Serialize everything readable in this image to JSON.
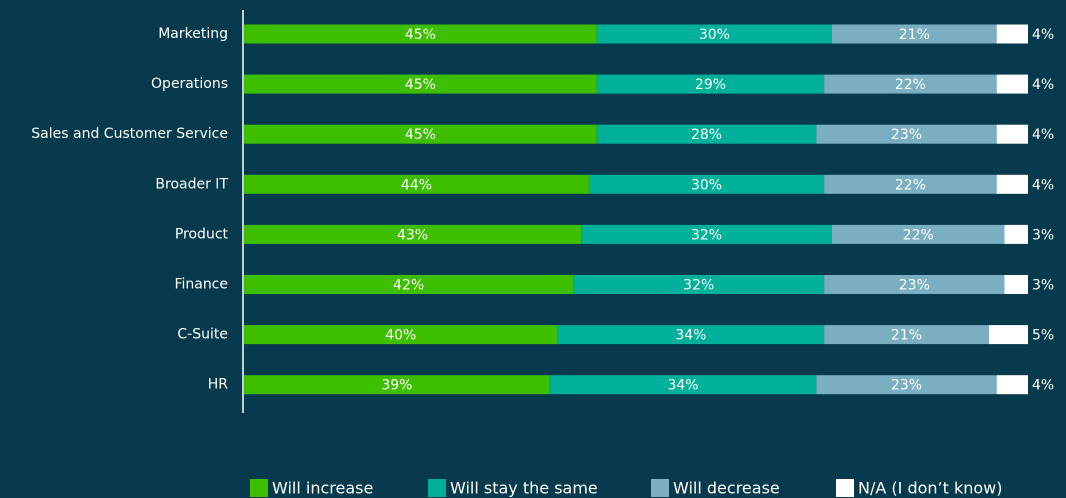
{
  "chart_data": {
    "type": "stacked-bar-horizontal",
    "categories": [
      "Marketing",
      "Operations",
      "Sales and Customer Service",
      "Broader IT",
      "Product",
      "Finance",
      "C-Suite",
      "HR"
    ],
    "xlim": [
      0,
      100
    ],
    "legend": "bottom",
    "series": [
      {
        "name": "Will increase",
        "color": "#3dbf00",
        "values": [
          45,
          45,
          45,
          44,
          43,
          42,
          40,
          39
        ],
        "value_labels": [
          "45%",
          "45%",
          "45%",
          "44%",
          "43%",
          "42%",
          "40%",
          "39%"
        ]
      },
      {
        "name": "Will stay the same",
        "color": "#00b09b",
        "values": [
          30,
          29,
          28,
          30,
          32,
          32,
          34,
          34
        ],
        "value_labels": [
          "30%",
          "29%",
          "28%",
          "30%",
          "32%",
          "32%",
          "34%",
          "34%"
        ]
      },
      {
        "name": "Will decrease",
        "color": "#7aafc2",
        "values": [
          21,
          22,
          23,
          22,
          22,
          23,
          21,
          23
        ],
        "value_labels": [
          "21%",
          "22%",
          "23%",
          "22%",
          "22%",
          "23%",
          "21%",
          "23%"
        ]
      },
      {
        "name": "N/A (I don’t know)",
        "color": "#ffffff",
        "values": [
          4,
          4,
          4,
          4,
          3,
          3,
          5,
          4
        ],
        "value_labels": [
          "4%",
          "4%",
          "4%",
          "4%",
          "3%",
          "3%",
          "5%",
          "4%"
        ]
      }
    ]
  }
}
